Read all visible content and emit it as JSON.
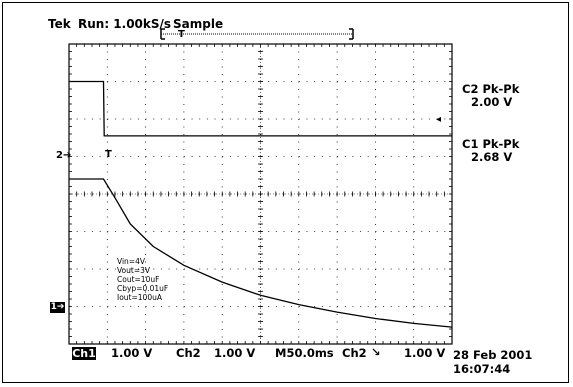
{
  "header": {
    "brand": "Tek",
    "run_status": "Run: 1.00kS/s",
    "acq_mode": "Sample"
  },
  "measurements": {
    "c2_label": "C2 Pk-Pk",
    "c2_value": "2.00 V",
    "c1_label": "C1 Pk-Pk",
    "c1_value": "2.68 V"
  },
  "markers": {
    "ch2": "2",
    "ch1": "1"
  },
  "annotation": [
    "Vin=4V",
    "Vout=3V",
    "Cout=10uF",
    "Cbyp=0.01uF",
    "Iout=100uA"
  ],
  "footer": {
    "ch1_badge": "Ch1",
    "ch1_scale": "1.00 V",
    "ch2_label": "Ch2",
    "ch2_scale": "1.00 V",
    "timebase": "M50.0ms",
    "trigger_source": "Ch2",
    "trigger_level": "1.00 V",
    "date": "28 Feb 2001",
    "time": "16:07:44"
  },
  "chart_data": {
    "type": "line",
    "title": "",
    "xlabel": "",
    "ylabel": "",
    "x_divisions": 10,
    "y_divisions": 8,
    "grid": true,
    "series": [
      {
        "points": [
          [
            0,
            7.0
          ],
          [
            0.9,
            7.0
          ],
          [
            0.92,
            5.55
          ],
          [
            10,
            5.55
          ]
        ]
      },
      {
        "points": [
          [
            0,
            4.4
          ],
          [
            0.9,
            4.4
          ],
          [
            1.2,
            3.9
          ],
          [
            1.6,
            3.2
          ],
          [
            2.2,
            2.6
          ],
          [
            3,
            2.1
          ],
          [
            4,
            1.65
          ],
          [
            5,
            1.3
          ],
          [
            6,
            1.05
          ],
          [
            7,
            0.85
          ],
          [
            8,
            0.68
          ],
          [
            9,
            0.55
          ],
          [
            10,
            0.45
          ]
        ]
      }
    ]
  }
}
